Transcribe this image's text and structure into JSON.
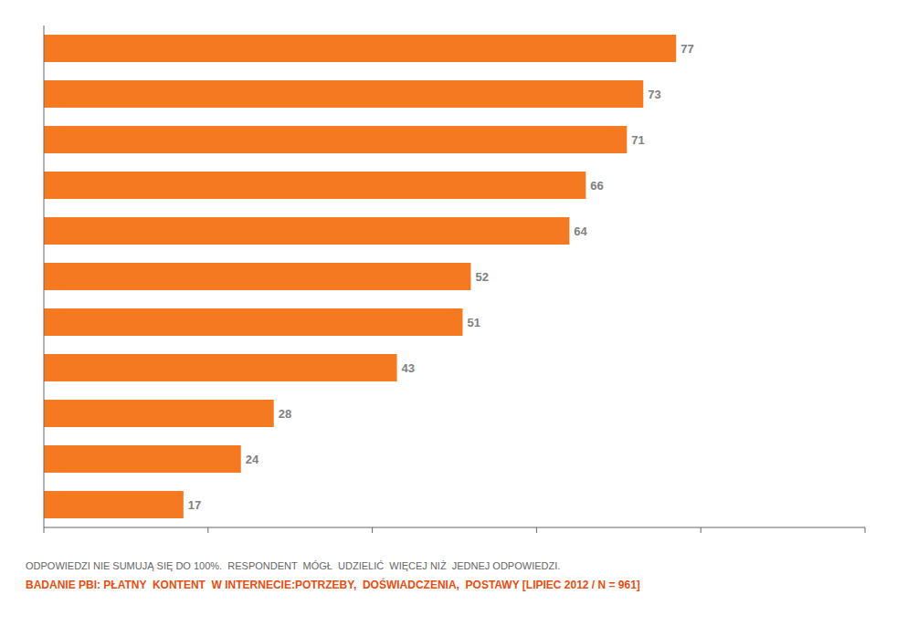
{
  "chart_data": {
    "type": "bar",
    "orientation": "horizontal",
    "categories": [
      null,
      null,
      null,
      null,
      null,
      null,
      null,
      null,
      null,
      null,
      null
    ],
    "values": [
      77,
      73,
      71,
      66,
      64,
      52,
      51,
      43,
      28,
      24,
      17
    ],
    "color": "#f47920",
    "xlim": [
      0,
      100
    ],
    "xticks": [
      0,
      20,
      40,
      60,
      80,
      100
    ],
    "tick_labels": false,
    "data_labels": true,
    "grid": false,
    "annotations": [
      {
        "text": "ODPOWIEDZI NIE SUMUJĄ SIĘ DO 100%.  RESPONDENT  MÓGŁ  UDZIELIĆ  WIĘCEJ NIŻ  JEDNEJ ODPOWIEDZI.",
        "color": "#666666"
      },
      {
        "text": "BADANIE PBI:",
        "color": "#e84e0f"
      },
      {
        "text": " PŁATNY  KONTENT  W INTERNECIE:POTRZEBY,  DOŚWIADCZENIA,  POSTAWY [LIPIEC 2012 / N = 961]",
        "color": "#e84e0f"
      }
    ]
  }
}
